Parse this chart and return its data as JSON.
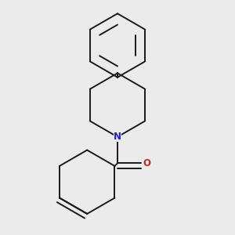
{
  "background_color": "#ebebeb",
  "bond_color": "#1a1a1a",
  "nitrogen_color": "#2020cc",
  "oxygen_color": "#cc2020",
  "line_width": 1.4,
  "figsize": [
    3.0,
    3.0
  ],
  "dpi": 100
}
